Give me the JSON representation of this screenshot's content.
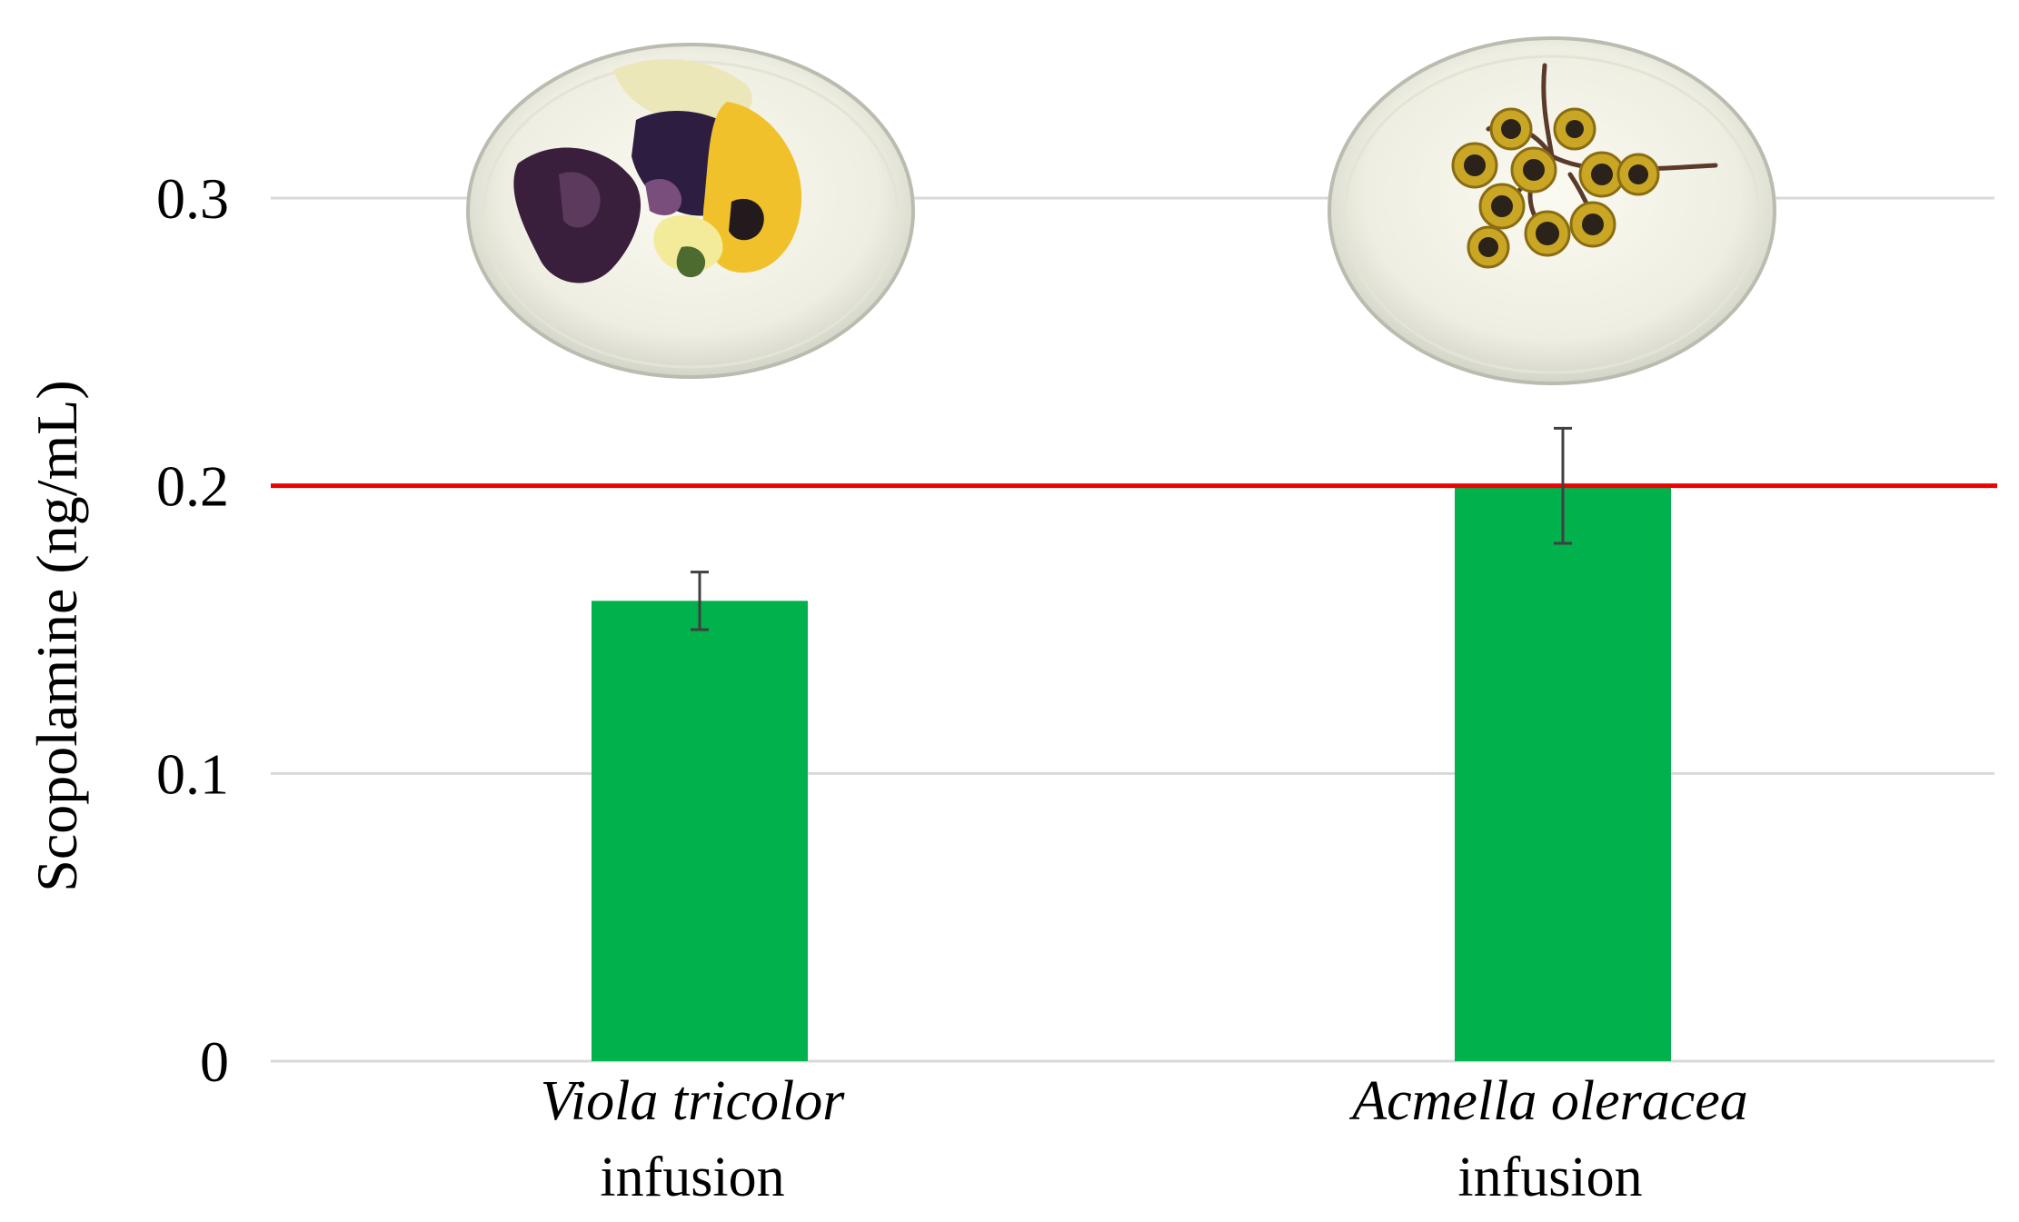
{
  "chart_data": {
    "type": "bar",
    "title": "",
    "ylabel": "Scopolamine (ng/mL)",
    "xlabel": "",
    "ylim": [
      0,
      0.33
    ],
    "yticks": [
      {
        "value": 0,
        "label": "0"
      },
      {
        "value": 0.1,
        "label": "0.1"
      },
      {
        "value": 0.2,
        "label": "0.2"
      },
      {
        "value": 0.3,
        "label": "0.3"
      }
    ],
    "grid": true,
    "categories": [
      {
        "species": "Viola tricolor",
        "suffix": "infusion",
        "image": "dried-pansy-petals-in-petri-dish"
      },
      {
        "species": "Acmella oleracea",
        "suffix": "infusion",
        "image": "dried-flower-heads-in-petri-dish"
      }
    ],
    "values": [
      0.16,
      0.2
    ],
    "errors": [
      0.01,
      0.02
    ],
    "reference_line": {
      "value": 0.2,
      "color": "#ee0000"
    },
    "colors": {
      "bar": "#00b14c",
      "grid": "#d9d9d9",
      "error_bar": "#404040"
    }
  }
}
